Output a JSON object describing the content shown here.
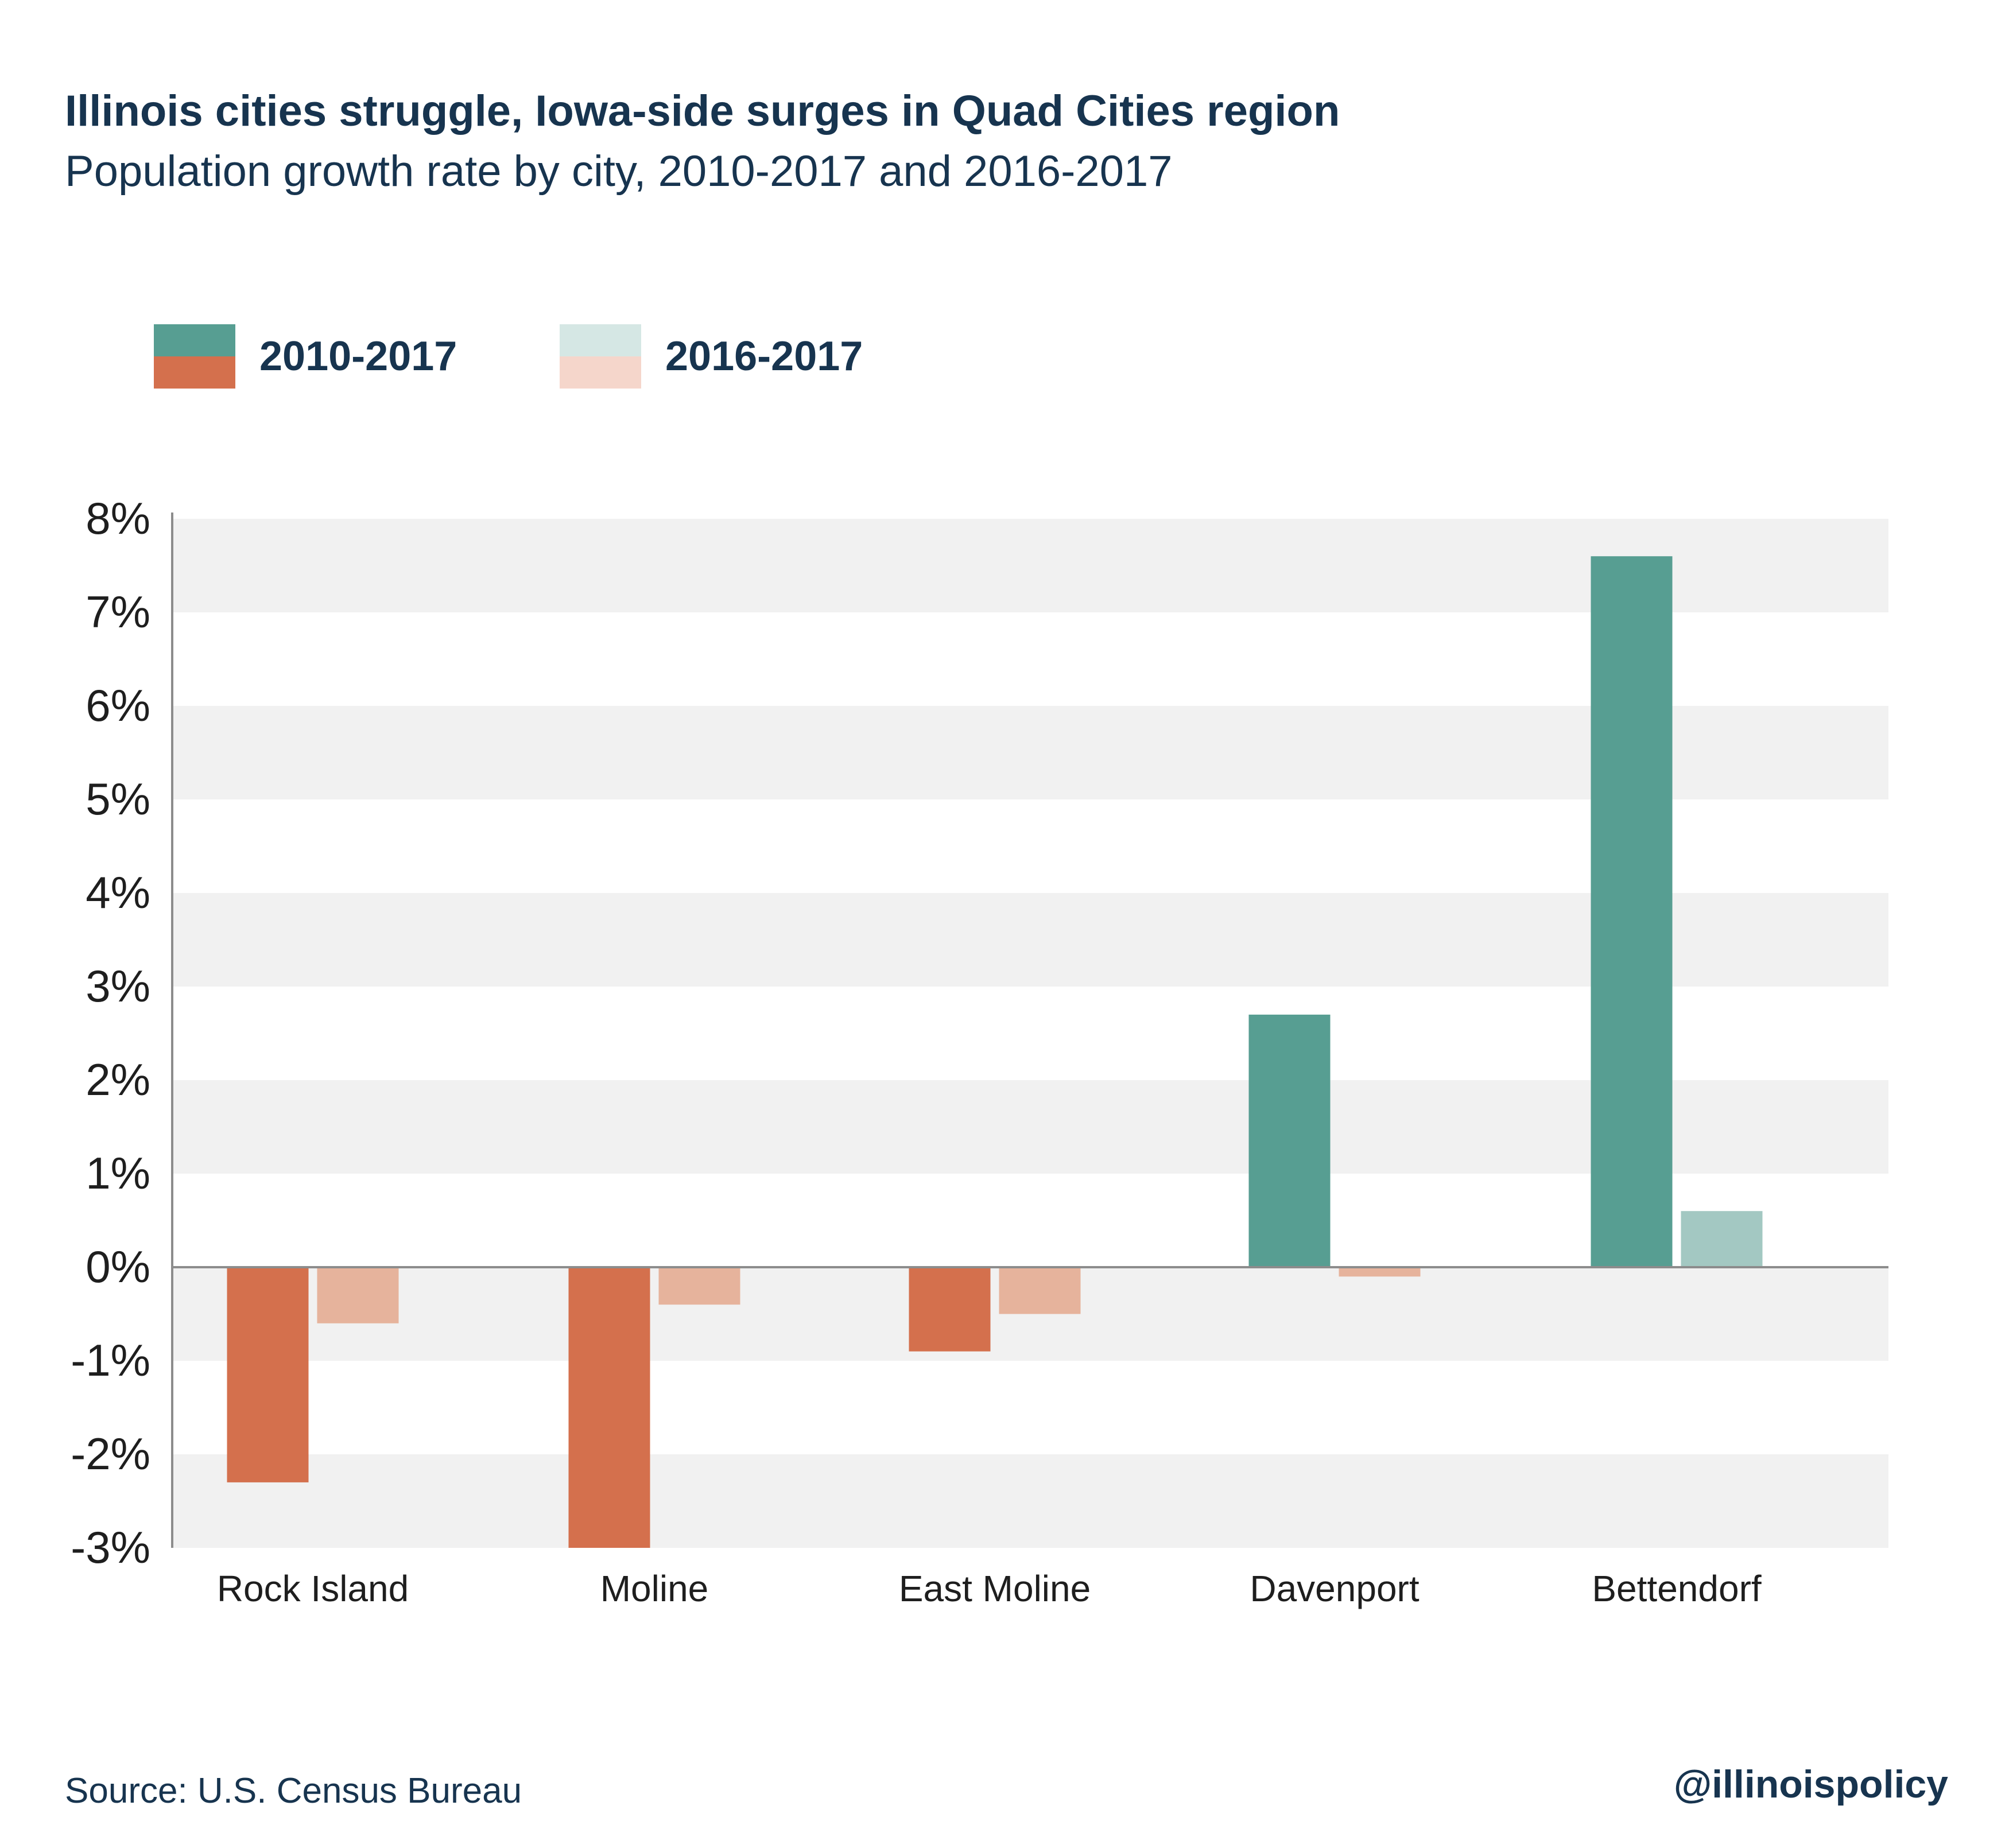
{
  "chart_data": {
    "type": "bar",
    "title": "Illinois cities struggle, Iowa-side surges in Quad Cities region",
    "subtitle": "Population growth rate by city, 2010-2017 and 2016-2017",
    "categories": [
      "Rock Island",
      "Moline",
      "East Moline",
      "Davenport",
      "Bettendorf"
    ],
    "series": [
      {
        "name": "2010-2017",
        "values": [
          -2.3,
          -3.0,
          -0.9,
          2.7,
          7.6
        ]
      },
      {
        "name": "2016-2017",
        "values": [
          -0.6,
          -0.4,
          -0.5,
          -0.1,
          0.6
        ]
      }
    ],
    "ylim": [
      -3,
      8
    ],
    "yticks": [
      8,
      7,
      6,
      5,
      4,
      3,
      2,
      1,
      0,
      -1,
      -2,
      -3
    ],
    "ytick_labels": [
      "8%",
      "7%",
      "6%",
      "5%",
      "4%",
      "3%",
      "2%",
      "1%",
      "0%",
      "-1%",
      "-2%",
      "-3%"
    ],
    "xlabel": "",
    "ylabel": "",
    "legend_position": "top-left",
    "grid": "alternating horizontal bands",
    "colors": {
      "series1_positive": "#579e92",
      "series1_negative": "#d4704d",
      "series2_positive": "#a3c8c2",
      "series2_negative": "#e6b39c",
      "legend1_top": "#579e92",
      "legend1_bottom": "#d4704d",
      "legend2_top": "#d5e7e4",
      "legend2_bottom": "#f5d6cb",
      "band": "#f1f1f1",
      "axis": "#8c8c8c",
      "text": "#17344f"
    }
  },
  "source": "Source: U.S. Census Bureau",
  "handle": "@illinoispolicy"
}
